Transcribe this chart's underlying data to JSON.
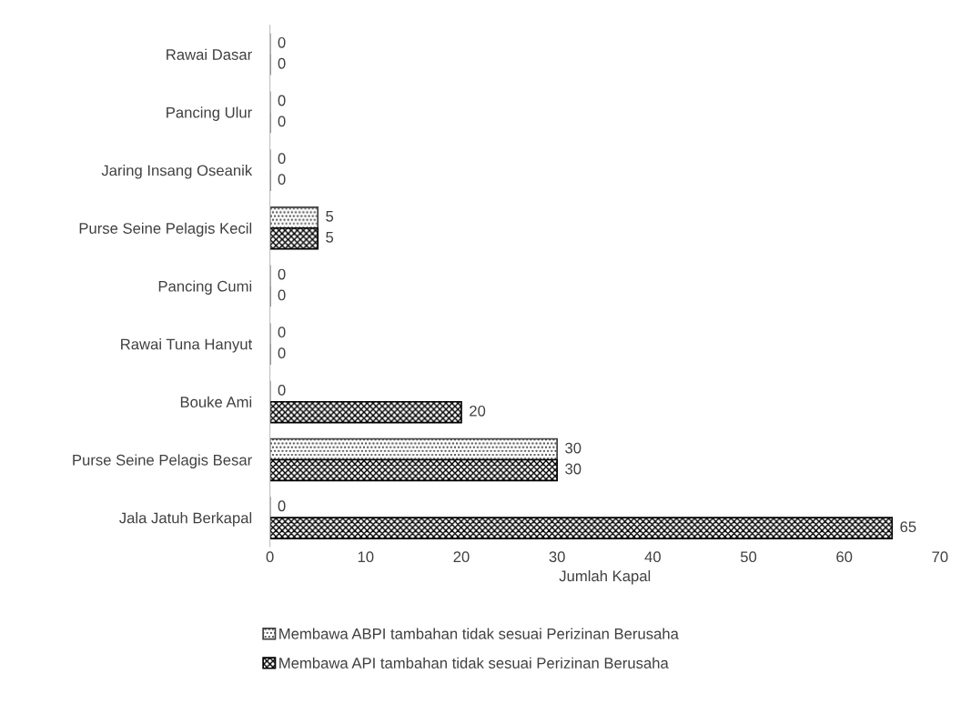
{
  "chart_data": {
    "type": "bar",
    "orientation": "horizontal",
    "categories": [
      "Rawai Dasar",
      "Pancing Ulur",
      "Jaring Insang Oseanik",
      "Purse Seine Pelagis Kecil",
      "Pancing Cumi",
      "Rawai Tuna Hanyut",
      "Bouke Ami",
      "Purse Seine Pelagis Besar",
      "Jala Jatuh Berkapal"
    ],
    "series": [
      {
        "name": "Membawa ABPI tambahan tidak sesuai Perizinan Berusaha",
        "color": "#404040",
        "values": [
          0,
          0,
          0,
          5,
          0,
          0,
          0,
          30,
          0
        ]
      },
      {
        "name": "Membawa API tambahan tidak sesuai Perizinan Berusaha",
        "color": "#000000",
        "values": [
          0,
          0,
          0,
          5,
          0,
          0,
          20,
          30,
          65
        ]
      }
    ],
    "xlabel": "Jumlah Kapal",
    "xlim": [
      0,
      70
    ],
    "xticks": [
      0,
      10,
      20,
      30,
      40,
      50,
      60,
      70
    ],
    "data_labels": true,
    "grid": false,
    "legend": "bottom"
  }
}
